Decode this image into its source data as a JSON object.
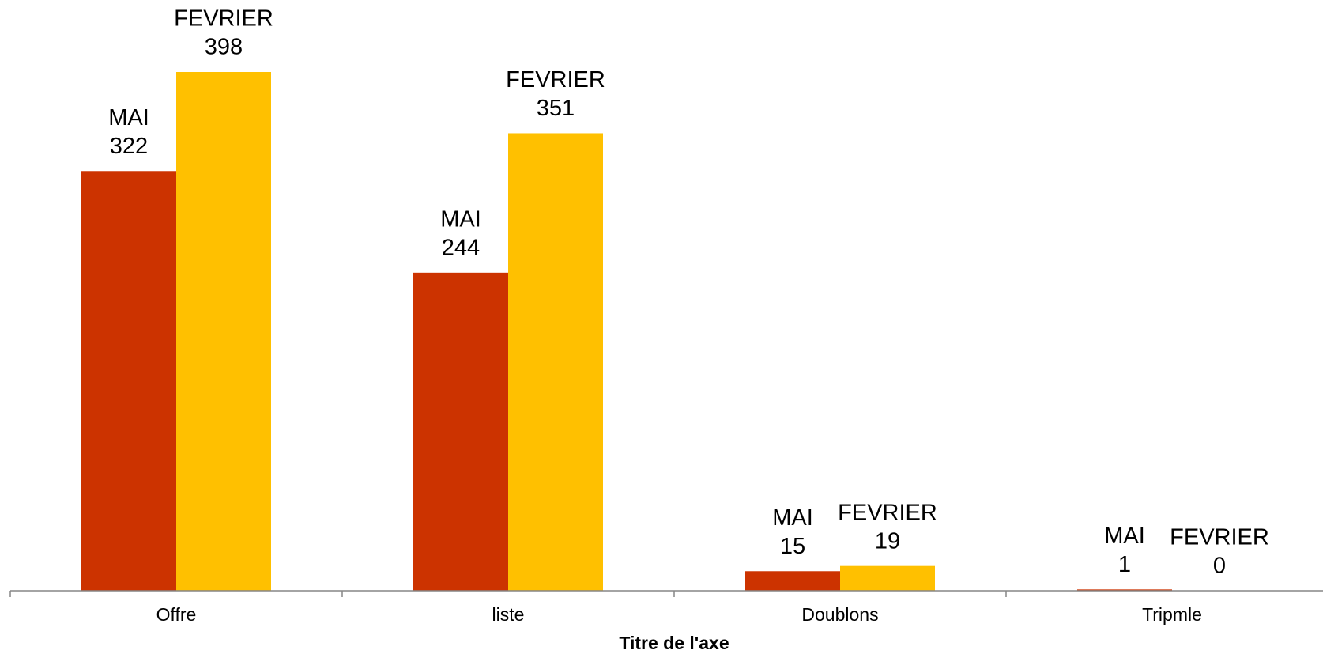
{
  "chart_data": {
    "type": "bar",
    "x_label": "Titre de l'axe",
    "categories": [
      "Offre",
      "liste",
      "Doublons",
      "Tripmle"
    ],
    "series": [
      {
        "name": "MAI",
        "color": "#cc3300",
        "values": [
          322,
          244,
          15,
          1
        ]
      },
      {
        "name": "FEVRIER",
        "color": "#ffc000",
        "values": [
          398,
          351,
          19,
          0
        ]
      }
    ]
  }
}
